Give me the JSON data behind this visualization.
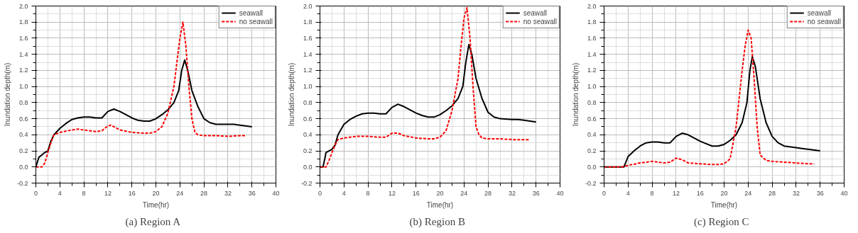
{
  "chart_data": [
    {
      "type": "line",
      "title": "(a)  Region  A",
      "xlabel": "Time(hr)",
      "ylabel": "Inundation depth(m)",
      "xlim": [
        0,
        40
      ],
      "ylim": [
        -0.2,
        2.0
      ],
      "xticks": [
        0,
        4,
        8,
        12,
        16,
        20,
        24,
        28,
        32,
        36,
        40
      ],
      "yticks": [
        {
          "value": -0.2,
          "label": "-0.2"
        },
        {
          "value": 0,
          "label": "0.0"
        },
        {
          "value": 0.2,
          "label": "0.2"
        },
        {
          "value": 0.4,
          "label": "0.4"
        },
        {
          "value": 0.6,
          "label": "0.6"
        },
        {
          "value": 0.8,
          "label": "0.8"
        },
        {
          "value": 1.0,
          "label": "1.0"
        },
        {
          "value": 1.2,
          "label": "1.2"
        },
        {
          "value": 1.4,
          "label": "1.4"
        },
        {
          "value": 1.6,
          "label": "1.6"
        },
        {
          "value": 1.8,
          "label": "1.8"
        },
        {
          "value": 2.0,
          "label": "2.0"
        }
      ],
      "grid": true,
      "legend": "top right",
      "series": [
        {
          "name": "seawall",
          "color": "#000000",
          "line_style": "solid",
          "x": [
            0,
            0.5,
            1,
            1.5,
            2,
            2.5,
            3,
            4,
            5,
            6,
            7,
            8,
            9,
            10,
            11,
            12,
            13,
            14,
            15,
            16,
            17,
            18,
            19,
            20,
            21,
            22,
            23,
            23.8,
            24.3,
            24.8,
            25.3,
            26,
            27,
            28,
            29,
            30,
            32,
            33,
            34,
            36
          ],
          "values": [
            0,
            0.12,
            0.15,
            0.18,
            0.2,
            0.32,
            0.4,
            0.48,
            0.54,
            0.59,
            0.61,
            0.62,
            0.62,
            0.61,
            0.61,
            0.69,
            0.72,
            0.69,
            0.65,
            0.61,
            0.58,
            0.57,
            0.57,
            0.6,
            0.65,
            0.71,
            0.8,
            0.95,
            1.2,
            1.33,
            1.2,
            0.95,
            0.75,
            0.6,
            0.55,
            0.53,
            0.53,
            0.53,
            0.52,
            0.5
          ]
        },
        {
          "name": "no seawall",
          "color": "#ff0000",
          "line_style": "dashed",
          "x": [
            0,
            1,
            1.5,
            2,
            2.5,
            3,
            4,
            6,
            7,
            8,
            10,
            11,
            12,
            12.5,
            13,
            14,
            16,
            18,
            19,
            20,
            21,
            22,
            23,
            23.5,
            24,
            24.5,
            25,
            25.5,
            26,
            26.5,
            27,
            28,
            30,
            32,
            34,
            35
          ],
          "values": [
            0,
            0,
            0.05,
            0.18,
            0.3,
            0.4,
            0.43,
            0.46,
            0.47,
            0.46,
            0.44,
            0.45,
            0.51,
            0.52,
            0.5,
            0.46,
            0.43,
            0.42,
            0.42,
            0.44,
            0.5,
            0.67,
            1.0,
            1.3,
            1.6,
            1.8,
            1.5,
            1.0,
            0.6,
            0.43,
            0.4,
            0.39,
            0.39,
            0.38,
            0.39,
            0.39
          ]
        }
      ]
    },
    {
      "type": "line",
      "title": "(b)  Region  B",
      "xlabel": "Time(hr)",
      "ylabel": "Inundation depth(m)",
      "xlim": [
        0,
        40
      ],
      "ylim": [
        -0.2,
        2.0
      ],
      "xticks": [
        0,
        4,
        8,
        12,
        16,
        20,
        24,
        28,
        32,
        36,
        40
      ],
      "yticks": [
        {
          "value": -0.2,
          "label": "-0.2"
        },
        {
          "value": 0,
          "label": "0.0"
        },
        {
          "value": 0.2,
          "label": "0.2"
        },
        {
          "value": 0.4,
          "label": "0.4"
        },
        {
          "value": 0.6,
          "label": "0.6"
        },
        {
          "value": 0.8,
          "label": "0.8"
        },
        {
          "value": 1.0,
          "label": "1.0"
        },
        {
          "value": 1.2,
          "label": "1.2"
        },
        {
          "value": 1.4,
          "label": "1.4"
        },
        {
          "value": 1.6,
          "label": "1.6"
        },
        {
          "value": 1.8,
          "label": "1.8"
        },
        {
          "value": 2.0,
          "label": "2.0"
        }
      ],
      "grid": true,
      "legend": "top right",
      "series": [
        {
          "name": "seawall",
          "color": "#000000",
          "line_style": "solid",
          "x": [
            0,
            0.5,
            0.8,
            1,
            2,
            2.5,
            3,
            4,
            5,
            6,
            7,
            8,
            9,
            10,
            11,
            12,
            13,
            14,
            15,
            16,
            17,
            18,
            19,
            20,
            21,
            22,
            23,
            23.8,
            24.3,
            24.8,
            25.3,
            26,
            27,
            28,
            29,
            30,
            32,
            33,
            34,
            36
          ],
          "values": [
            0,
            0,
            0.1,
            0.18,
            0.22,
            0.27,
            0.4,
            0.53,
            0.59,
            0.63,
            0.66,
            0.67,
            0.67,
            0.66,
            0.66,
            0.74,
            0.78,
            0.75,
            0.71,
            0.67,
            0.64,
            0.62,
            0.62,
            0.65,
            0.7,
            0.76,
            0.85,
            1.0,
            1.3,
            1.52,
            1.4,
            1.1,
            0.85,
            0.68,
            0.62,
            0.6,
            0.59,
            0.59,
            0.58,
            0.56
          ]
        },
        {
          "name": "no seawall",
          "color": "#ff0000",
          "line_style": "dashed",
          "x": [
            0,
            1,
            1.5,
            2,
            2.5,
            3,
            4,
            6,
            8,
            10,
            11,
            12,
            13,
            14,
            16,
            18,
            19,
            20,
            21,
            22,
            23,
            23.5,
            24,
            24.5,
            25,
            25.5,
            26,
            26.5,
            27,
            28,
            30,
            32,
            34,
            35
          ],
          "values": [
            0,
            0,
            0.08,
            0.18,
            0.27,
            0.34,
            0.36,
            0.38,
            0.38,
            0.37,
            0.37,
            0.42,
            0.42,
            0.39,
            0.36,
            0.35,
            0.35,
            0.37,
            0.45,
            0.7,
            1.1,
            1.5,
            1.85,
            1.98,
            1.6,
            1.0,
            0.5,
            0.4,
            0.36,
            0.35,
            0.35,
            0.34,
            0.34,
            0.34
          ]
        }
      ]
    },
    {
      "type": "line",
      "title": "(c)  Region  C",
      "xlabel": "Time(hr)",
      "ylabel": "Inundation depth(m)",
      "xlim": [
        0,
        40
      ],
      "ylim": [
        -0.2,
        2.0
      ],
      "xticks": [
        0,
        4,
        8,
        12,
        16,
        20,
        24,
        28,
        32,
        36,
        40
      ],
      "yticks": [
        {
          "value": -0.2,
          "label": "-0.2"
        },
        {
          "value": 0,
          "label": "0.0"
        },
        {
          "value": 0.2,
          "label": "0.2"
        },
        {
          "value": 0.4,
          "label": "0.4"
        },
        {
          "value": 0.6,
          "label": "0.6"
        },
        {
          "value": 0.8,
          "label": "0.8"
        },
        {
          "value": 1.0,
          "label": "1.0"
        },
        {
          "value": 1.2,
          "label": "1.2"
        },
        {
          "value": 1.4,
          "label": "1.4"
        },
        {
          "value": 1.6,
          "label": "1.6"
        },
        {
          "value": 1.8,
          "label": "1.8"
        },
        {
          "value": 2.0,
          "label": "2.0"
        }
      ],
      "grid": true,
      "legend": "top right",
      "series": [
        {
          "name": "seawall",
          "color": "#000000",
          "line_style": "solid",
          "x": [
            0,
            3.3,
            4,
            5,
            6,
            7,
            8,
            9,
            10,
            11,
            12,
            13,
            14,
            15,
            16,
            17,
            18,
            19,
            20,
            21,
            22,
            23,
            23.8,
            24.3,
            24.7,
            25.2,
            26,
            27,
            28,
            29,
            30,
            32,
            33,
            34,
            36
          ],
          "values": [
            0,
            0,
            0.13,
            0.2,
            0.26,
            0.3,
            0.31,
            0.31,
            0.3,
            0.3,
            0.38,
            0.42,
            0.4,
            0.36,
            0.32,
            0.29,
            0.26,
            0.26,
            0.28,
            0.33,
            0.4,
            0.55,
            0.8,
            1.2,
            1.37,
            1.25,
            0.85,
            0.55,
            0.38,
            0.3,
            0.26,
            0.24,
            0.23,
            0.22,
            0.2
          ]
        },
        {
          "name": "no seawall",
          "color": "#ff0000",
          "line_style": "dashed",
          "x": [
            0,
            3,
            4,
            6,
            8,
            10,
            11,
            12,
            13,
            14,
            16,
            18,
            19,
            20,
            21,
            21.5,
            22,
            22.5,
            23,
            23.5,
            24,
            24.5,
            25,
            25.5,
            26,
            27,
            28,
            30,
            32,
            34,
            35
          ],
          "values": [
            0,
            0,
            0.02,
            0.05,
            0.07,
            0.05,
            0.06,
            0.11,
            0.09,
            0.05,
            0.04,
            0.03,
            0.03,
            0.04,
            0.1,
            0.3,
            0.5,
            0.85,
            1.2,
            1.5,
            1.7,
            1.6,
            1.1,
            0.5,
            0.15,
            0.08,
            0.07,
            0.06,
            0.05,
            0.04,
            0.04
          ]
        }
      ]
    }
  ]
}
